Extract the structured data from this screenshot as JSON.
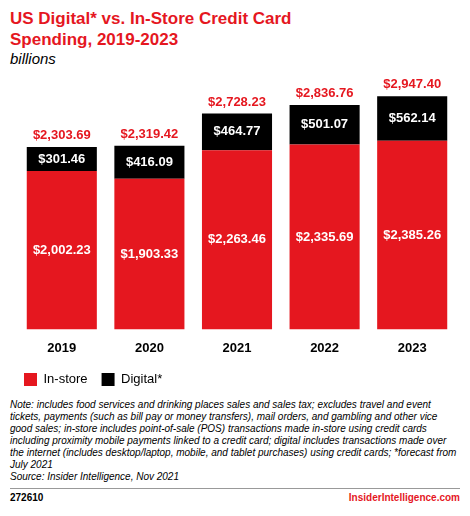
{
  "chart_data": {
    "type": "bar",
    "title": "US Digital* vs. In-Store Credit Card Spending, 2019-2023",
    "subtitle": "billions",
    "categories": [
      "2019",
      "2020",
      "2021",
      "2022",
      "2023"
    ],
    "series": [
      {
        "name": "In-store",
        "color": "#e5171f",
        "values": [
          2002.23,
          1903.33,
          2263.46,
          2335.69,
          2385.26
        ],
        "value_labels": [
          "$2,002.23",
          "$1,903.33",
          "$2,263.46",
          "$2,335.69",
          "$2,385.26"
        ]
      },
      {
        "name": "Digital*",
        "color": "#000000",
        "values": [
          301.46,
          416.09,
          464.77,
          501.07,
          562.14
        ],
        "value_labels": [
          "$301.46",
          "$416.09",
          "$464.77",
          "$501.07",
          "$562.14"
        ]
      }
    ],
    "totals": {
      "color": "#e5171f",
      "values": [
        2303.69,
        2319.42,
        2728.23,
        2836.76,
        2947.4
      ],
      "value_labels": [
        "$2,303.69",
        "$2,319.42",
        "$2,728.23",
        "$2,836.76",
        "$2,947.40"
      ]
    },
    "stacked": true,
    "data_labels": true,
    "ylim": [
      0,
      3000
    ],
    "yticks": [
      0,
      3000
    ],
    "grid": false,
    "tick_labels": "x",
    "legend": "bottom"
  },
  "note": "Note: includes food services and drinking places sales and sales tax; excludes travel and event tickets, payments (such as bill pay or money transfers), mail orders, and gambling and other vice good sales; in-store includes point-of-sale (POS) transactions made in-store using credit cards including proximity mobile payments linked to a credit card; digital includes transactions made over the internet (includes desktop/laptop, mobile, and tablet purchases) using credit cards; *forecast from July 2021",
  "source": "Source: Insider Intelligence, Nov 2021",
  "footer": {
    "id": "272610",
    "brand": "InsiderIntelligence.com"
  }
}
